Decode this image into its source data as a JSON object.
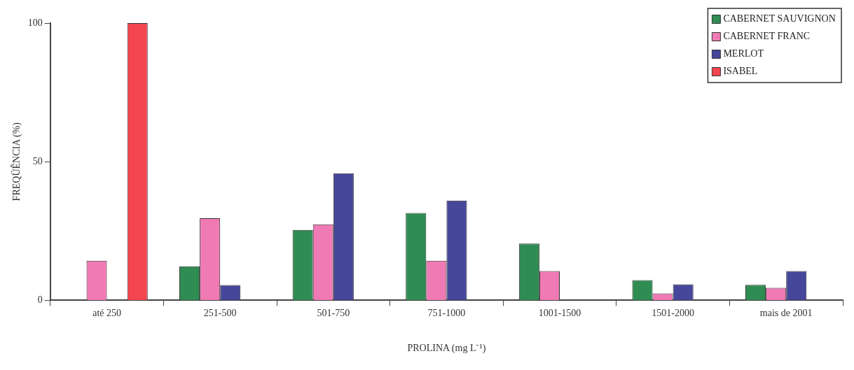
{
  "chart_data": {
    "type": "bar",
    "xlabel": "PROLINA (mg L⁻¹)",
    "ylabel": "FREQÜÊNCIA (%)",
    "categories": [
      "até 250",
      "251-500",
      "501-750",
      "751-1000",
      "1001-1500",
      "1501-2000",
      "mais de 2001"
    ],
    "series": [
      {
        "name": "CABERNET SAUVIGNON",
        "color": "#2f8c52",
        "values": [
          null,
          12.3,
          25.4,
          31.5,
          20.5,
          7.3,
          5.6
        ]
      },
      {
        "name": "CABERNET FRANC",
        "color": "#f07ab4",
        "values": [
          14.3,
          29.6,
          27.4,
          14.3,
          10.6,
          2.5,
          4.5
        ]
      },
      {
        "name": "MERLOT",
        "color": "#46469a",
        "values": [
          null,
          5.5,
          45.8,
          36,
          null,
          5.8,
          10.6
        ]
      },
      {
        "name": "ISABEL",
        "color": "#f4464e",
        "values": [
          100,
          null,
          null,
          null,
          null,
          null,
          null
        ]
      }
    ],
    "ylim": [
      0,
      100
    ],
    "yticks": [
      0,
      50,
      100
    ],
    "grid": false,
    "legend": "top right"
  }
}
